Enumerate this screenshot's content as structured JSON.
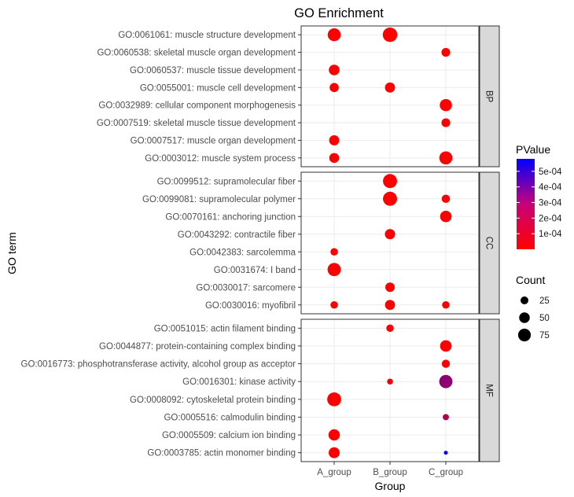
{
  "chart_data": {
    "type": "scatter",
    "title": "GO Enrichment",
    "xlabel": "Group",
    "ylabel": "GO term",
    "categories": [
      "A_group",
      "B_group",
      "C_group"
    ],
    "grid": true,
    "facets": [
      {
        "label": "BP",
        "terms": [
          "GO:0061061: muscle structure development",
          "GO:0060538: skeletal muscle organ development",
          "GO:0060537: muscle tissue development",
          "GO:0055001: muscle cell development",
          "GO:0032989: cellular component morphogenesis",
          "GO:0007519: skeletal muscle tissue development",
          "GO:0007517: muscle organ development",
          "GO:0003012: muscle system process"
        ]
      },
      {
        "label": "CC",
        "terms": [
          "GO:0099512: supramolecular fiber",
          "GO:0099081: supramolecular polymer",
          "GO:0070161: anchoring junction",
          "GO:0043292: contractile fiber",
          "GO:0042383: sarcolemma",
          "GO:0031674: I band",
          "GO:0030017: sarcomere",
          "GO:0030016: myofibril"
        ]
      },
      {
        "label": "MF",
        "terms": [
          "GO:0051015: actin filament binding",
          "GO:0044877: protein-containing complex binding",
          "GO:0016773: phosphotransferase activity, alcohol group as acceptor",
          "GO:0016301: kinase activity",
          "GO:0008092: cytoskeletal protein binding",
          "GO:0005516: calmodulin binding",
          "GO:0005509: calcium ion binding",
          "GO:0003785: actin monomer binding"
        ]
      }
    ],
    "points": [
      {
        "facet": "BP",
        "term": "GO:0061061: muscle structure development",
        "group": "A_group",
        "count": 78,
        "pvalue": 2e-06
      },
      {
        "facet": "BP",
        "term": "GO:0061061: muscle structure development",
        "group": "B_group",
        "count": 100,
        "pvalue": 1e-06
      },
      {
        "facet": "BP",
        "term": "GO:0060538: skeletal muscle organ development",
        "group": "C_group",
        "count": 32,
        "pvalue": 5e-06
      },
      {
        "facet": "BP",
        "term": "GO:0060537: muscle tissue development",
        "group": "A_group",
        "count": 50,
        "pvalue": 3e-06
      },
      {
        "facet": "BP",
        "term": "GO:0055001: muscle cell development",
        "group": "A_group",
        "count": 35,
        "pvalue": 5e-06
      },
      {
        "facet": "BP",
        "term": "GO:0055001: muscle cell development",
        "group": "B_group",
        "count": 44,
        "pvalue": 4e-06
      },
      {
        "facet": "BP",
        "term": "GO:0032989: cellular component morphogenesis",
        "group": "C_group",
        "count": 68,
        "pvalue": 3e-06
      },
      {
        "facet": "BP",
        "term": "GO:0007519: skeletal muscle tissue development",
        "group": "C_group",
        "count": 32,
        "pvalue": 6e-06
      },
      {
        "facet": "BP",
        "term": "GO:0007517: muscle organ development",
        "group": "A_group",
        "count": 44,
        "pvalue": 4e-06
      },
      {
        "facet": "BP",
        "term": "GO:0003012: muscle system process",
        "group": "A_group",
        "count": 42,
        "pvalue": 4e-06
      },
      {
        "facet": "BP",
        "term": "GO:0003012: muscle system process",
        "group": "C_group",
        "count": 80,
        "pvalue": 2e-06
      },
      {
        "facet": "CC",
        "term": "GO:0099512: supramolecular fiber",
        "group": "B_group",
        "count": 94,
        "pvalue": 1e-06
      },
      {
        "facet": "CC",
        "term": "GO:0099081: supramolecular polymer",
        "group": "B_group",
        "count": 94,
        "pvalue": 1e-06
      },
      {
        "facet": "CC",
        "term": "GO:0099081: supramolecular polymer",
        "group": "C_group",
        "count": 28,
        "pvalue": 8e-06
      },
      {
        "facet": "CC",
        "term": "GO:0070161: anchoring junction",
        "group": "C_group",
        "count": 60,
        "pvalue": 3e-06
      },
      {
        "facet": "CC",
        "term": "GO:0043292: contractile fiber",
        "group": "B_group",
        "count": 46,
        "pvalue": 4e-06
      },
      {
        "facet": "CC",
        "term": "GO:0042383: sarcolemma",
        "group": "A_group",
        "count": 22,
        "pvalue": 1e-05
      },
      {
        "facet": "CC",
        "term": "GO:0031674: I band",
        "group": "A_group",
        "count": 82,
        "pvalue": 2e-06
      },
      {
        "facet": "CC",
        "term": "GO:0030017: sarcomere",
        "group": "B_group",
        "count": 38,
        "pvalue": 5e-06
      },
      {
        "facet": "CC",
        "term": "GO:0030016: myofibril",
        "group": "A_group",
        "count": 22,
        "pvalue": 1e-05
      },
      {
        "facet": "CC",
        "term": "GO:0030016: myofibril",
        "group": "B_group",
        "count": 44,
        "pvalue": 4e-06
      },
      {
        "facet": "CC",
        "term": "GO:0030016: myofibril",
        "group": "C_group",
        "count": 22,
        "pvalue": 1e-05
      },
      {
        "facet": "MF",
        "term": "GO:0051015: actin filament binding",
        "group": "B_group",
        "count": 22,
        "pvalue": 1e-05
      },
      {
        "facet": "MF",
        "term": "GO:0044877: protein-containing complex binding",
        "group": "C_group",
        "count": 60,
        "pvalue": 3e-06
      },
      {
        "facet": "MF",
        "term": "GO:0016773: phosphotransferase activity, alcohol group as acceptor",
        "group": "C_group",
        "count": 27,
        "pvalue": 8e-06
      },
      {
        "facet": "MF",
        "term": "GO:0016301: kinase activity",
        "group": "B_group",
        "count": 12,
        "pvalue": 2e-05
      },
      {
        "facet": "MF",
        "term": "GO:0016301: kinase activity",
        "group": "C_group",
        "count": 82,
        "pvalue": 0.00026
      },
      {
        "facet": "MF",
        "term": "GO:0008092: cytoskeletal protein binding",
        "group": "A_group",
        "count": 92,
        "pvalue": 2e-06
      },
      {
        "facet": "MF",
        "term": "GO:0005516: calmodulin binding",
        "group": "C_group",
        "count": 14,
        "pvalue": 0.00018
      },
      {
        "facet": "MF",
        "term": "GO:0005509: calcium ion binding",
        "group": "A_group",
        "count": 58,
        "pvalue": 3e-06
      },
      {
        "facet": "MF",
        "term": "GO:0003785: actin monomer binding",
        "group": "A_group",
        "count": 54,
        "pvalue": 3e-06
      },
      {
        "facet": "MF",
        "term": "GO:0003785: actin monomer binding",
        "group": "C_group",
        "count": 4,
        "pvalue": 0.00058
      }
    ],
    "legend": {
      "placement": "right",
      "color": {
        "title": "PValue",
        "breaks": [
          0.0001,
          0.0002,
          0.0003,
          0.0004,
          0.0005
        ],
        "labels": [
          "1e-04",
          "2e-04",
          "3e-04",
          "4e-04",
          "5e-04"
        ],
        "range": [
          0,
          0.00058
        ],
        "low_color": "#FF0000",
        "high_color": "#0000FF"
      },
      "size": {
        "title": "Count",
        "breaks": [
          25,
          50,
          75
        ],
        "labels": [
          "25",
          "50",
          "75"
        ]
      }
    }
  }
}
